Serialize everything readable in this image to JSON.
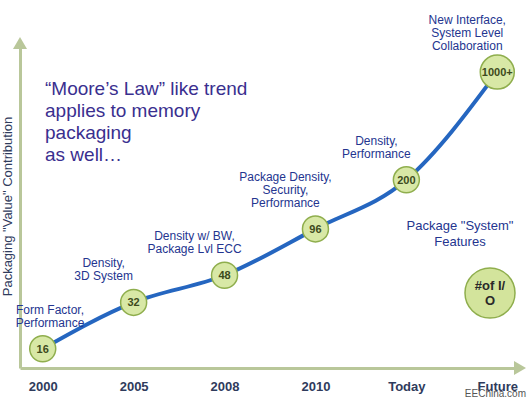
{
  "chart_data": {
    "type": "line",
    "title": [
      "“Moore’s Law” like trend",
      "applies to memory",
      "packaging",
      "as well…"
    ],
    "ylabel": "Packaging \"Value\" Contribution",
    "categories": [
      "2000",
      "2005",
      "2008",
      "2010",
      "Today",
      "Future"
    ],
    "values": [
      16,
      32,
      48,
      96,
      200,
      1000
    ],
    "value_labels": [
      "16",
      "32",
      "48",
      "96",
      "200",
      "1000+"
    ],
    "data_labels": true,
    "annotations": [
      [
        "Form Factor,",
        "Performance"
      ],
      [
        "Density,",
        "3D System"
      ],
      [
        "Density w/ BW,",
        "Package Lvl ECC"
      ],
      [
        "Package Density,",
        "Security,",
        "Performance"
      ],
      [
        "Density,",
        "Performance"
      ],
      [
        "New Interface,",
        "System Level",
        "Collaboration"
      ]
    ],
    "side_annotation": {
      "label": [
        "Package \"System\"",
        "Features"
      ],
      "marker_text": [
        "#of I/",
        "O"
      ]
    },
    "watermark": "EEChina.com",
    "log": "y",
    "ylim": [
      12,
      1500
    ],
    "yticks": [],
    "tick_labels": "x",
    "grid": false,
    "marker": "circle",
    "color": "#2566c0"
  }
}
